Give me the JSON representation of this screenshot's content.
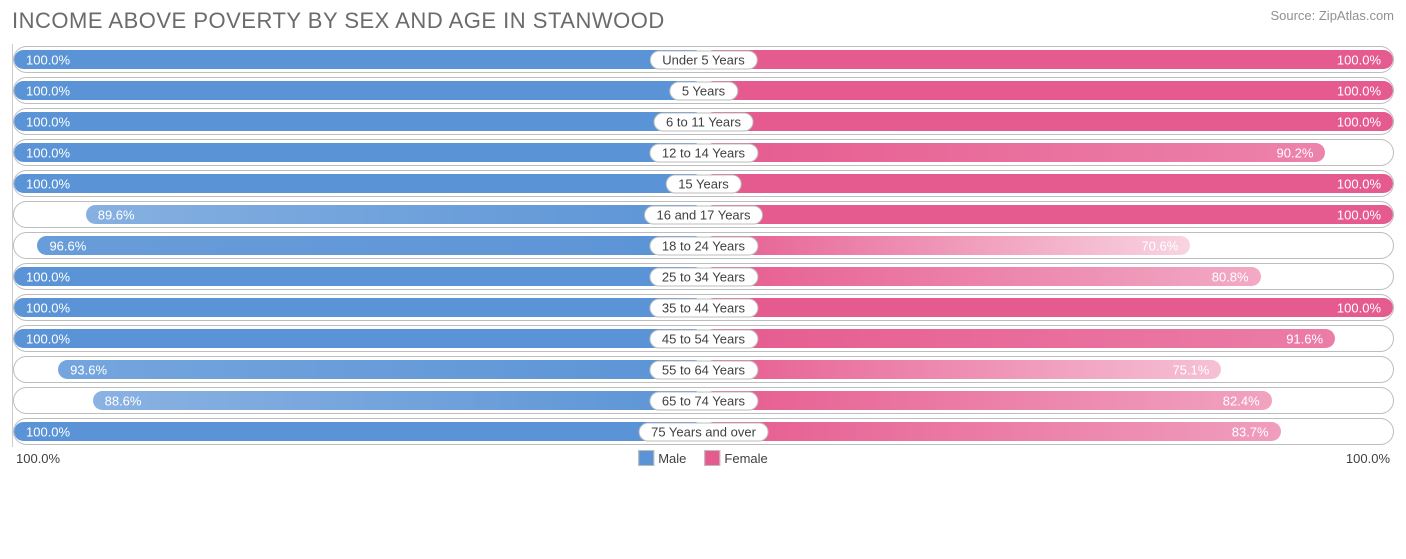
{
  "title": "INCOME ABOVE POVERTY BY SEX AND AGE IN STANWOOD",
  "source": "Source: ZipAtlas.com",
  "chart": {
    "type": "diverging-bar",
    "male_color_full": "#5b94d6",
    "female_color_full": "#e65b8f",
    "bg_color": "#ffffff",
    "border_color": "#bdbdbd",
    "axis_left": "100.0%",
    "axis_right": "100.0%",
    "legend": {
      "male": "Male",
      "female": "Female"
    },
    "rows": [
      {
        "category": "Under 5 Years",
        "male": 100.0,
        "female": 100.0
      },
      {
        "category": "5 Years",
        "male": 100.0,
        "female": 100.0
      },
      {
        "category": "6 to 11 Years",
        "male": 100.0,
        "female": 100.0
      },
      {
        "category": "12 to 14 Years",
        "male": 100.0,
        "female": 90.2
      },
      {
        "category": "15 Years",
        "male": 100.0,
        "female": 100.0
      },
      {
        "category": "16 and 17 Years",
        "male": 89.6,
        "female": 100.0
      },
      {
        "category": "18 to 24 Years",
        "male": 96.6,
        "female": 70.6
      },
      {
        "category": "25 to 34 Years",
        "male": 100.0,
        "female": 80.8
      },
      {
        "category": "35 to 44 Years",
        "male": 100.0,
        "female": 100.0
      },
      {
        "category": "45 to 54 Years",
        "male": 100.0,
        "female": 91.6
      },
      {
        "category": "55 to 64 Years",
        "male": 93.6,
        "female": 75.1
      },
      {
        "category": "65 to 74 Years",
        "male": 88.6,
        "female": 82.4
      },
      {
        "category": "75 Years and over",
        "male": 100.0,
        "female": 83.7
      }
    ]
  }
}
